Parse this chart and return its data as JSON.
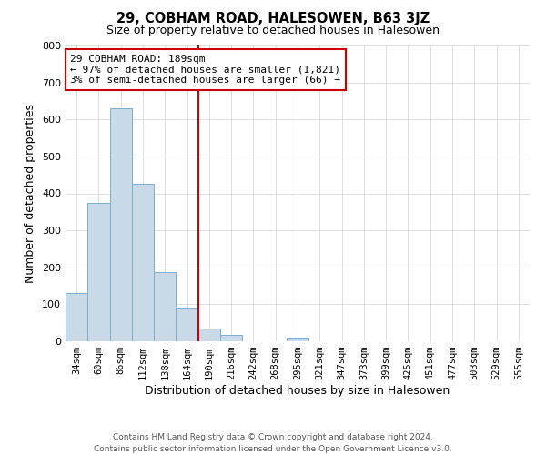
{
  "title": "29, COBHAM ROAD, HALESOWEN, B63 3JZ",
  "subtitle": "Size of property relative to detached houses in Halesowen",
  "xlabel": "Distribution of detached houses by size in Halesowen",
  "ylabel": "Number of detached properties",
  "bar_labels": [
    "34sqm",
    "60sqm",
    "86sqm",
    "112sqm",
    "138sqm",
    "164sqm",
    "190sqm",
    "216sqm",
    "242sqm",
    "268sqm",
    "295sqm",
    "321sqm",
    "347sqm",
    "373sqm",
    "399sqm",
    "425sqm",
    "451sqm",
    "477sqm",
    "503sqm",
    "529sqm",
    "555sqm"
  ],
  "bar_values": [
    130,
    375,
    630,
    425,
    188,
    88,
    35,
    18,
    0,
    0,
    10,
    0,
    0,
    0,
    0,
    0,
    0,
    0,
    0,
    0,
    0
  ],
  "bar_color": "#c9d9e8",
  "bar_edge_color": "#7aafcf",
  "ref_line_color": "#cc0000",
  "ref_line_index": 6,
  "ylim": [
    0,
    800
  ],
  "yticks": [
    0,
    100,
    200,
    300,
    400,
    500,
    600,
    700,
    800
  ],
  "annotation_title": "29 COBHAM ROAD: 189sqm",
  "annotation_line1": "← 97% of detached houses are smaller (1,821)",
  "annotation_line2": "3% of semi-detached houses are larger (66) →",
  "footer_line1": "Contains HM Land Registry data © Crown copyright and database right 2024.",
  "footer_line2": "Contains public sector information licensed under the Open Government Licence v3.0.",
  "figsize": [
    6.0,
    5.0
  ],
  "dpi": 100
}
